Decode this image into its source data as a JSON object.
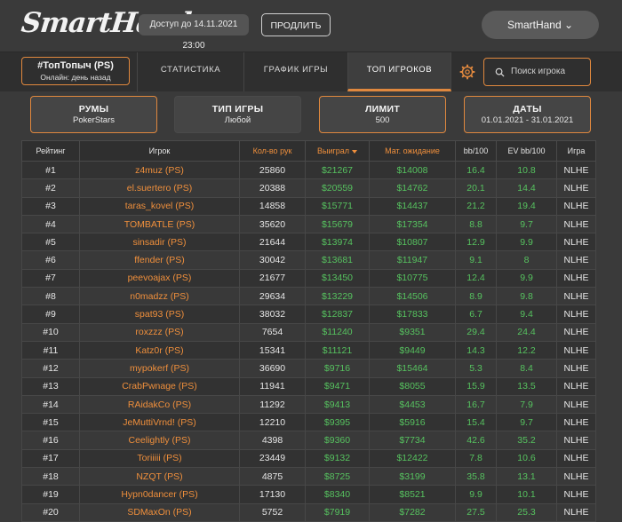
{
  "header": {
    "logo_text": "SmartHand",
    "access_text": "Доступ до 14.11.2021 23:00",
    "extend_label": "ПРОДЛИТЬ",
    "user_label": "SmartHand ⌄"
  },
  "tabs": {
    "nick": "#ТопТопыч (PS)",
    "online": "Онлайн: день назад",
    "items": [
      {
        "label": "СТАТИСТИКА"
      },
      {
        "label": "ГРАФИК ИГРЫ"
      },
      {
        "label": "ТОП ИГРОКОВ",
        "active": true
      }
    ],
    "search_placeholder": "Поиск игрока"
  },
  "filters": [
    {
      "title": "РУМЫ",
      "value": "PokerStars"
    },
    {
      "title": "ТИП ИГРЫ",
      "value": "Любой"
    },
    {
      "title": "ЛИМИТ",
      "value": "500"
    },
    {
      "title": "ДАТЫ",
      "value": "01.01.2021 - 31.01.2021"
    }
  ],
  "table": {
    "headers": [
      "Рейтинг",
      "Игрок",
      "Кол-во рук",
      "Выиграл",
      "Мат. ожидание",
      "bb/100",
      "EV bb/100",
      "Игра"
    ],
    "rows": [
      [
        "#1",
        "z4muz (PS)",
        "25860",
        "$21267",
        "$14008",
        "16.4",
        "10.8",
        "NLHE"
      ],
      [
        "#2",
        "el.suertero (PS)",
        "20388",
        "$20559",
        "$14762",
        "20.1",
        "14.4",
        "NLHE"
      ],
      [
        "#3",
        "taras_kovel (PS)",
        "14858",
        "$15771",
        "$14437",
        "21.2",
        "19.4",
        "NLHE"
      ],
      [
        "#4",
        "TOMBATLE (PS)",
        "35620",
        "$15679",
        "$17354",
        "8.8",
        "9.7",
        "NLHE"
      ],
      [
        "#5",
        "sinsadir (PS)",
        "21644",
        "$13974",
        "$10807",
        "12.9",
        "9.9",
        "NLHE"
      ],
      [
        "#6",
        "ffender (PS)",
        "30042",
        "$13681",
        "$11947",
        "9.1",
        "8",
        "NLHE"
      ],
      [
        "#7",
        "peevoajax (PS)",
        "21677",
        "$13450",
        "$10775",
        "12.4",
        "9.9",
        "NLHE"
      ],
      [
        "#8",
        "n0madzz (PS)",
        "29634",
        "$13229",
        "$14506",
        "8.9",
        "9.8",
        "NLHE"
      ],
      [
        "#9",
        "spat93 (PS)",
        "38032",
        "$12837",
        "$17833",
        "6.7",
        "9.4",
        "NLHE"
      ],
      [
        "#10",
        "roxzzz (PS)",
        "7654",
        "$11240",
        "$9351",
        "29.4",
        "24.4",
        "NLHE"
      ],
      [
        "#11",
        "Katz0r (PS)",
        "15341",
        "$11121",
        "$9449",
        "14.3",
        "12.2",
        "NLHE"
      ],
      [
        "#12",
        "mypokerf (PS)",
        "36690",
        "$9716",
        "$15464",
        "5.3",
        "8.4",
        "NLHE"
      ],
      [
        "#13",
        "CrabPwnage (PS)",
        "11941",
        "$9471",
        "$8055",
        "15.9",
        "13.5",
        "NLHE"
      ],
      [
        "#14",
        "RAidakCo (PS)",
        "11292",
        "$9413",
        "$4453",
        "16.7",
        "7.9",
        "NLHE"
      ],
      [
        "#15",
        "JeMuttiVrnd! (PS)",
        "12210",
        "$9395",
        "$5916",
        "15.4",
        "9.7",
        "NLHE"
      ],
      [
        "#16",
        "Ceelightly (PS)",
        "4398",
        "$9360",
        "$7734",
        "42.6",
        "35.2",
        "NLHE"
      ],
      [
        "#17",
        "Toriiiii (PS)",
        "23449",
        "$9132",
        "$12422",
        "7.8",
        "10.6",
        "NLHE"
      ],
      [
        "#18",
        "NZQT (PS)",
        "4875",
        "$8725",
        "$3199",
        "35.8",
        "13.1",
        "NLHE"
      ],
      [
        "#19",
        "Hypn0dancer (PS)",
        "17130",
        "$8340",
        "$8521",
        "9.9",
        "10.1",
        "NLHE"
      ],
      [
        "#20",
        "SDMaxOn (PS)",
        "5752",
        "$7919",
        "$7282",
        "27.5",
        "25.3",
        "NLHE"
      ]
    ]
  },
  "colors": {
    "accent": "#e0883e",
    "positive": "#56c25f"
  },
  "icons": {
    "settings": "gear-icon",
    "search": "search-icon",
    "sort": "sort-desc-icon"
  }
}
